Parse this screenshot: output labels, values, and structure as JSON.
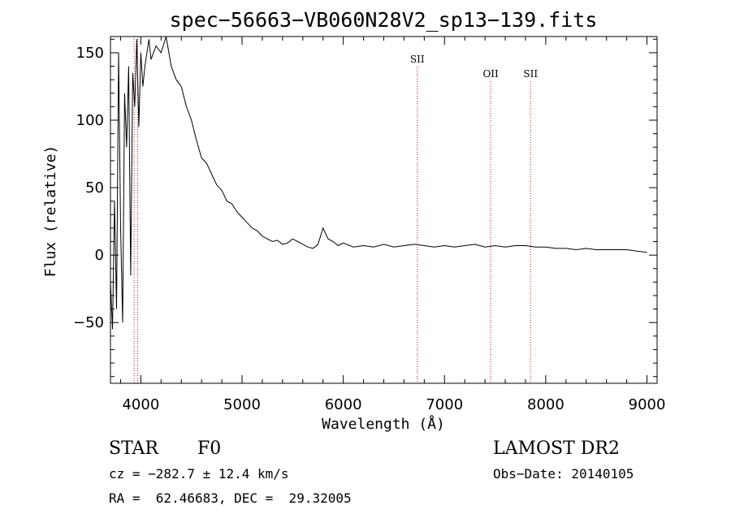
{
  "chart_data": {
    "type": "line",
    "title": "spec−56663−VB060N28V2_sp13−139.fits",
    "xlabel": "Wavelength (Å)",
    "ylabel": "Flux (relative)",
    "xlim": [
      3700,
      9100
    ],
    "ylim": [
      -95,
      162
    ],
    "xticks": [
      4000,
      5000,
      6000,
      7000,
      8000,
      9000
    ],
    "yticks": [
      -50,
      0,
      50,
      100,
      150
    ],
    "ytick_labels": [
      "−50",
      "0",
      "50",
      "100",
      "150"
    ],
    "grid": false,
    "series": [
      {
        "x": [
          3700,
          3720,
          3740,
          3760,
          3780,
          3800,
          3820,
          3840,
          3860,
          3880,
          3900,
          3920,
          3940,
          3960,
          3980,
          4000,
          4020,
          4040,
          4060,
          4080,
          4100,
          4150,
          4200,
          4250,
          4300,
          4350,
          4400,
          4450,
          4500,
          4550,
          4600,
          4650,
          4700,
          4750,
          4800,
          4850,
          4900,
          4950,
          5000,
          5050,
          5100,
          5150,
          5200,
          5250,
          5300,
          5350,
          5400,
          5450,
          5500,
          5550,
          5600,
          5650,
          5700,
          5750,
          5800,
          5850,
          5900,
          5950,
          6000,
          6100,
          6200,
          6300,
          6400,
          6500,
          6600,
          6700,
          6800,
          6900,
          7000,
          7100,
          7200,
          7300,
          7400,
          7500,
          7600,
          7700,
          7800,
          7900,
          8000,
          8100,
          8200,
          8300,
          8400,
          8500,
          8600,
          8700,
          8800,
          8900,
          9000
        ],
        "y": [
          -20,
          -55,
          40,
          -40,
          150,
          20,
          -50,
          120,
          80,
          140,
          -15,
          135,
          110,
          160,
          95,
          150,
          125,
          140,
          150,
          160,
          145,
          155,
          150,
          162,
          140,
          130,
          125,
          110,
          100,
          85,
          72,
          68,
          60,
          52,
          48,
          40,
          38,
          32,
          28,
          24,
          20,
          18,
          14,
          12,
          10,
          11,
          8,
          9,
          12,
          10,
          8,
          6,
          5,
          8,
          20,
          12,
          10,
          7,
          9,
          6,
          7,
          6,
          8,
          6,
          7,
          8,
          7,
          6,
          7,
          6,
          7,
          8,
          6,
          7,
          6,
          7,
          7,
          6,
          6,
          5,
          5,
          4,
          5,
          4,
          4,
          4,
          4,
          3,
          2
        ]
      }
    ],
    "line_markers": [
      {
        "label": "SII",
        "wavelength": 6731
      },
      {
        "label": "OII",
        "wavelength": 7456
      },
      {
        "label": "SII",
        "wavelength": 7850
      }
    ],
    "extra_markers": [
      3934,
      3969
    ]
  },
  "info": {
    "object_class": "STAR",
    "subclass": "F0",
    "survey": "LAMOST DR2",
    "cz": "cz = −282.7 ± 12.4 km/s",
    "obs_date": "Obs−Date: 20140105",
    "coords": "RA =  62.46683, DEC =  29.32005"
  },
  "colors": {
    "spectrum": "#000000",
    "marker": "#b02020",
    "axes": "#000000"
  }
}
